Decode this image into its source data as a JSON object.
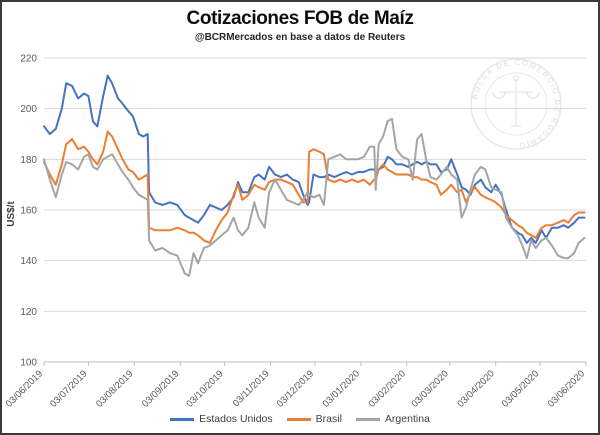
{
  "watermark": {
    "text": "BOLSA DE COMERCIO DE ROSARIO"
  },
  "chart_data": {
    "type": "line",
    "title": "Cotizaciones FOB de Maíz",
    "subtitle": "@BCRMercados en base a datos de Reuters",
    "ylabel": "US$/t",
    "ylim": [
      100,
      220
    ],
    "ytick_step": 20,
    "ytick_labels": [
      "100",
      "120",
      "140",
      "160",
      "180",
      "200",
      "220"
    ],
    "grid": true,
    "legend_position": "bottom",
    "x_unit": "days since 2019-06-03, daily FOB quotes sampled",
    "x_tick_days": [
      0,
      30,
      61,
      92,
      122,
      153,
      183,
      214,
      245,
      274,
      305,
      335,
      366
    ],
    "x_tick_labels": [
      "03/06/2019",
      "03/07/2019",
      "03/08/2019",
      "03/09/2019",
      "03/10/2019",
      "03/11/2019",
      "03/12/2019",
      "03/01/2020",
      "03/02/2020",
      "03/03/2020",
      "03/04/2020",
      "03/05/2020",
      "03/06/2020"
    ],
    "x_days": [
      0,
      4,
      8,
      12,
      15,
      19,
      23,
      27,
      30,
      33,
      36,
      40,
      43,
      46,
      50,
      53,
      57,
      60,
      64,
      67,
      70,
      71,
      75,
      80,
      85,
      90,
      95,
      98,
      101,
      104,
      108,
      112,
      116,
      120,
      124,
      128,
      131,
      134,
      138,
      142,
      145,
      149,
      152,
      156,
      160,
      164,
      168,
      172,
      175,
      178,
      179,
      182,
      186,
      189,
      192,
      196,
      200,
      204,
      208,
      212,
      216,
      220,
      223,
      224,
      226,
      229,
      232,
      235,
      238,
      242,
      246,
      249,
      252,
      255,
      258,
      261,
      265,
      268,
      272,
      275,
      279,
      282,
      285,
      288,
      291,
      295,
      298,
      302,
      305,
      309,
      312,
      316,
      320,
      323,
      326,
      329,
      332,
      336,
      339,
      343,
      347,
      351,
      354,
      358,
      361,
      365
    ],
    "series": [
      {
        "name": "Estados Unidos",
        "color": "#4472c4",
        "values": [
          193,
          190,
          192,
          200,
          210,
          209,
          204,
          206,
          205,
          195,
          193,
          205,
          213,
          210,
          204,
          202,
          199,
          197,
          190,
          189,
          190,
          167,
          163,
          162,
          163,
          162,
          158,
          157,
          156,
          155,
          158,
          162,
          161,
          160,
          162,
          165,
          171,
          167,
          167,
          173,
          174,
          172,
          177,
          174,
          173,
          174,
          172,
          171,
          166,
          162,
          163,
          174,
          173,
          173,
          174,
          173,
          174,
          175,
          174,
          175,
          175,
          176,
          176,
          176,
          176,
          177,
          181,
          180,
          178,
          178,
          177,
          178,
          179,
          178,
          179,
          178,
          178,
          175,
          176,
          180,
          174,
          169,
          168,
          166,
          170,
          172,
          169,
          167,
          170,
          166,
          160,
          153,
          151,
          150,
          147,
          149,
          147,
          152,
          149,
          153,
          153,
          154,
          153,
          155,
          157,
          157
        ]
      },
      {
        "name": "Brasil",
        "color": "#ed7d31",
        "values": [
          179,
          174,
          170,
          178,
          186,
          188,
          184,
          185,
          183,
          180,
          178,
          183,
          191,
          189,
          184,
          180,
          176,
          175,
          172,
          173,
          174,
          153,
          152,
          152,
          152,
          153,
          152,
          151,
          151,
          150,
          148,
          147,
          152,
          156,
          159,
          166,
          170,
          164,
          166,
          170,
          169,
          168,
          171,
          172,
          172,
          171,
          170,
          166,
          163,
          163,
          183,
          184,
          183,
          182,
          172,
          171,
          172,
          171,
          172,
          171,
          172,
          170,
          172,
          172,
          176,
          178,
          176,
          175,
          174,
          174,
          174,
          173,
          173,
          172,
          172,
          171,
          170,
          166,
          168,
          170,
          167,
          168,
          163,
          167,
          169,
          166,
          165,
          164,
          163,
          161,
          158,
          156,
          154,
          153,
          151,
          150,
          149,
          153,
          154,
          154,
          155,
          156,
          155,
          158,
          159,
          159
        ]
      },
      {
        "name": "Argentina",
        "color": "#a5a5a5",
        "values": [
          180,
          172,
          165,
          174,
          179,
          178,
          176,
          181,
          182,
          177,
          176,
          180,
          181,
          182,
          178,
          175,
          172,
          169,
          166,
          165,
          164,
          148,
          144,
          145,
          143,
          142,
          135,
          134,
          143,
          139,
          145,
          146,
          148,
          150,
          152,
          157,
          152,
          150,
          153,
          163,
          157,
          153,
          167,
          172,
          168,
          164,
          163,
          162,
          164,
          167,
          166,
          165,
          166,
          162,
          180,
          181,
          182,
          180,
          180,
          180,
          181,
          185,
          185,
          168,
          186,
          189,
          195,
          196,
          184,
          181,
          180,
          172,
          188,
          190,
          180,
          173,
          172,
          174,
          177,
          174,
          172,
          157,
          161,
          168,
          174,
          177,
          176,
          169,
          168,
          167,
          157,
          153,
          150,
          146,
          141,
          148,
          145,
          148,
          149,
          146,
          142,
          141,
          141,
          143,
          147,
          149
        ]
      }
    ]
  }
}
